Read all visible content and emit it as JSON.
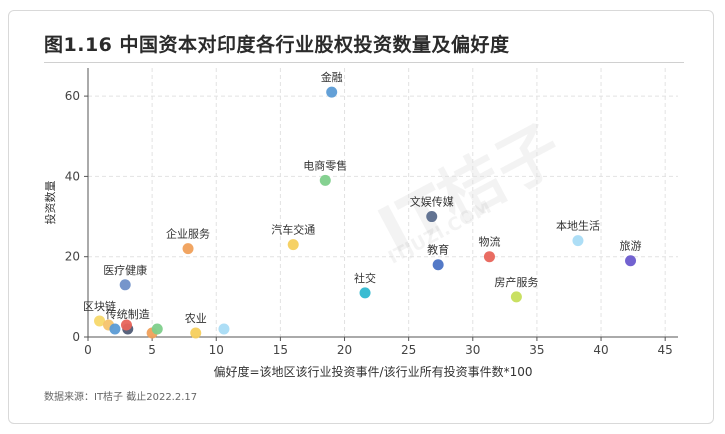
{
  "header": {
    "title": "图1.16 中国资本对印度各行业股权投资数量及偏好度"
  },
  "footer": {
    "source": "数据来源：IT桔子 截止2022.2.17"
  },
  "watermark": {
    "main": "IT桔子",
    "sub": "ITJUZI.COM"
  },
  "chart_data": {
    "type": "scatter",
    "title": "图1.16 中国资本对印度各行业股权投资数量及偏好度",
    "xlabel": "偏好度=该地区该行业投资事件/该行业所有投资事件数*100",
    "ylabel": "投资数量",
    "xlim": [
      0,
      46
    ],
    "ylim": [
      0,
      67
    ],
    "xticks": [
      0,
      5,
      10,
      15,
      20,
      25,
      30,
      35,
      40,
      45
    ],
    "yticks": [
      0,
      20,
      40,
      60
    ],
    "grid": true,
    "points": [
      {
        "label": "金融",
        "x": 19.0,
        "y": 61,
        "color": "#5b9bd5"
      },
      {
        "label": "电商零售",
        "x": 18.5,
        "y": 39,
        "color": "#7ecf8b"
      },
      {
        "label": "文娱传媒",
        "x": 26.8,
        "y": 30,
        "color": "#5a6b8c"
      },
      {
        "label": "本地生活",
        "x": 38.2,
        "y": 24,
        "color": "#a9dcf5"
      },
      {
        "label": "企业服务",
        "x": 7.8,
        "y": 22,
        "color": "#f0a05a"
      },
      {
        "label": "汽车交通",
        "x": 16.0,
        "y": 23,
        "color": "#f6cf5c"
      },
      {
        "label": "物流",
        "x": 31.3,
        "y": 20,
        "color": "#e8645a"
      },
      {
        "label": "旅游",
        "x": 42.3,
        "y": 19,
        "color": "#6a5acd"
      },
      {
        "label": "教育",
        "x": 27.3,
        "y": 18,
        "color": "#4a72c4"
      },
      {
        "label": "医疗健康",
        "x": 2.9,
        "y": 13,
        "color": "#6f8fc8"
      },
      {
        "label": "社交",
        "x": 21.6,
        "y": 11,
        "color": "#2fb8d0"
      },
      {
        "label": "房产服务",
        "x": 33.4,
        "y": 10,
        "color": "#c6de5a"
      },
      {
        "label": "区块链",
        "x": 0.9,
        "y": 4,
        "color": "#f7d86a"
      },
      {
        "label": "传统制造",
        "x": 3.1,
        "y": 2,
        "color": "#4f5b75"
      },
      {
        "label": "农业",
        "x": 8.4,
        "y": 1,
        "color": "#f6cf5c"
      },
      {
        "label": "",
        "x": 1.6,
        "y": 3,
        "color": "#f5c36b"
      },
      {
        "label": "",
        "x": 2.1,
        "y": 2,
        "color": "#5b9bd5"
      },
      {
        "label": "",
        "x": 3.0,
        "y": 3,
        "color": "#e8645a"
      },
      {
        "label": "",
        "x": 5.0,
        "y": 1,
        "color": "#f0a05a"
      },
      {
        "label": "",
        "x": 5.4,
        "y": 2,
        "color": "#7ecf8b"
      },
      {
        "label": "",
        "x": 10.6,
        "y": 2,
        "color": "#a9dcf5"
      }
    ]
  }
}
